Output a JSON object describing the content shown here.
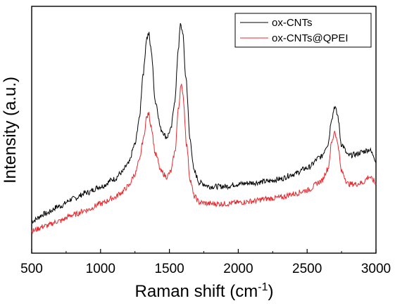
{
  "chart_data": {
    "type": "line",
    "title": "",
    "xlabel": "Raman shift (cm",
    "xlabel_sup": "-1",
    "xlabel_close": ")",
    "ylabel": "Intensity (a.u.)",
    "xlim": [
      500,
      3000
    ],
    "ylim": [
      0,
      1
    ],
    "xticks": [
      500,
      1000,
      1500,
      2000,
      2500,
      3000
    ],
    "yticks_shown": false,
    "grid": false,
    "legend_position": "top-right",
    "series": [
      {
        "name": "ox-CNTs",
        "color": "#000000",
        "points": [
          [
            500,
            0.13
          ],
          [
            600,
            0.16
          ],
          [
            700,
            0.19
          ],
          [
            800,
            0.22
          ],
          [
            900,
            0.245
          ],
          [
            1000,
            0.27
          ],
          [
            1100,
            0.3
          ],
          [
            1150,
            0.325
          ],
          [
            1200,
            0.36
          ],
          [
            1250,
            0.44
          ],
          [
            1280,
            0.54
          ],
          [
            1310,
            0.73
          ],
          [
            1335,
            0.87
          ],
          [
            1350,
            0.89
          ],
          [
            1365,
            0.83
          ],
          [
            1400,
            0.61
          ],
          [
            1440,
            0.5
          ],
          [
            1480,
            0.47
          ],
          [
            1510,
            0.5
          ],
          [
            1540,
            0.62
          ],
          [
            1565,
            0.83
          ],
          [
            1580,
            0.925
          ],
          [
            1595,
            0.9
          ],
          [
            1620,
            0.71
          ],
          [
            1650,
            0.46
          ],
          [
            1680,
            0.33
          ],
          [
            1720,
            0.285
          ],
          [
            1800,
            0.27
          ],
          [
            1900,
            0.27
          ],
          [
            2000,
            0.28
          ],
          [
            2100,
            0.285
          ],
          [
            2200,
            0.29
          ],
          [
            2300,
            0.3
          ],
          [
            2400,
            0.32
          ],
          [
            2500,
            0.345
          ],
          [
            2600,
            0.39
          ],
          [
            2650,
            0.44
          ],
          [
            2680,
            0.55
          ],
          [
            2700,
            0.595
          ],
          [
            2720,
            0.56
          ],
          [
            2750,
            0.44
          ],
          [
            2800,
            0.395
          ],
          [
            2850,
            0.4
          ],
          [
            2900,
            0.41
          ],
          [
            2950,
            0.42
          ],
          [
            2980,
            0.4
          ],
          [
            3000,
            0.37
          ]
        ]
      },
      {
        "name": "ox-CNTs@QPEI",
        "color": "#e8292e",
        "points": [
          [
            500,
            0.09
          ],
          [
            600,
            0.11
          ],
          [
            700,
            0.13
          ],
          [
            800,
            0.155
          ],
          [
            900,
            0.175
          ],
          [
            1000,
            0.2
          ],
          [
            1100,
            0.225
          ],
          [
            1150,
            0.245
          ],
          [
            1200,
            0.27
          ],
          [
            1250,
            0.32
          ],
          [
            1280,
            0.37
          ],
          [
            1310,
            0.46
          ],
          [
            1335,
            0.55
          ],
          [
            1350,
            0.565
          ],
          [
            1365,
            0.52
          ],
          [
            1400,
            0.4
          ],
          [
            1440,
            0.33
          ],
          [
            1480,
            0.31
          ],
          [
            1510,
            0.33
          ],
          [
            1540,
            0.41
          ],
          [
            1565,
            0.58
          ],
          [
            1585,
            0.69
          ],
          [
            1600,
            0.63
          ],
          [
            1625,
            0.44
          ],
          [
            1650,
            0.3
          ],
          [
            1680,
            0.23
          ],
          [
            1720,
            0.205
          ],
          [
            1800,
            0.2
          ],
          [
            1900,
            0.2
          ],
          [
            2000,
            0.205
          ],
          [
            2100,
            0.21
          ],
          [
            2200,
            0.22
          ],
          [
            2300,
            0.225
          ],
          [
            2400,
            0.24
          ],
          [
            2500,
            0.255
          ],
          [
            2600,
            0.29
          ],
          [
            2650,
            0.34
          ],
          [
            2680,
            0.45
          ],
          [
            2700,
            0.495
          ],
          [
            2720,
            0.45
          ],
          [
            2750,
            0.33
          ],
          [
            2800,
            0.28
          ],
          [
            2850,
            0.28
          ],
          [
            2900,
            0.285
          ],
          [
            2950,
            0.31
          ],
          [
            2980,
            0.295
          ],
          [
            3000,
            0.28
          ]
        ]
      }
    ]
  }
}
